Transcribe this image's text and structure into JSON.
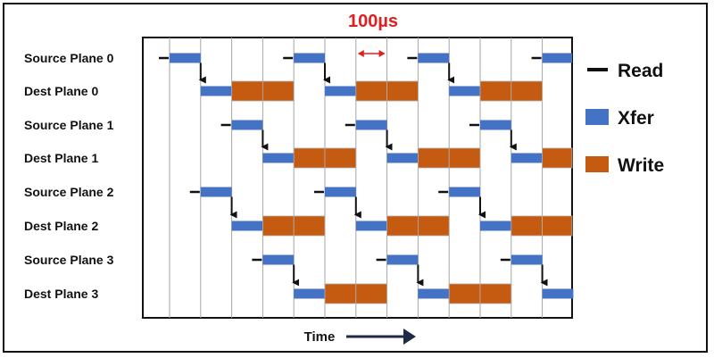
{
  "interval_label": "100µs",
  "axis_label": "Time",
  "rows": [
    "Source Plane 0",
    "Dest Plane 0",
    "Source Plane 1",
    "Dest Plane 1",
    "Source Plane 2",
    "Dest Plane 2",
    "Source Plane 3",
    "Dest Plane 3"
  ],
  "legend": [
    {
      "label": "Read",
      "color": "#111111",
      "shape": "dash"
    },
    {
      "label": "Xfer",
      "color": "#4472c4",
      "shape": "box"
    },
    {
      "label": "Write",
      "color": "#c55a11",
      "shape": "box"
    }
  ],
  "colors": {
    "read": "#111111",
    "xfer": "#4472c4",
    "write": "#c55a11",
    "interval_marker": "#e02020",
    "grid": "#a6a6a6",
    "axis_arrow": "#1f2a44"
  },
  "timeline": {
    "time_slots": 13,
    "slot_duration": "100µs",
    "schedule": [
      {
        "source_row": 0,
        "dest_row": 1,
        "xfer_start_slots": [
          0,
          4,
          8,
          12
        ]
      },
      {
        "source_row": 2,
        "dest_row": 3,
        "xfer_start_slots": [
          2,
          6,
          10
        ]
      },
      {
        "source_row": 4,
        "dest_row": 5,
        "xfer_start_slots": [
          1,
          5,
          9
        ]
      },
      {
        "source_row": 6,
        "dest_row": 7,
        "xfer_start_slots": [
          3,
          7,
          11
        ]
      }
    ],
    "write_duration_slots": 2
  }
}
